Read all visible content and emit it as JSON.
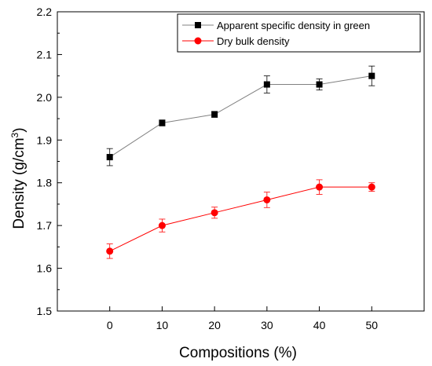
{
  "chart_data": {
    "type": "line",
    "xlabel": "Compositions (%)",
    "ylabel": {
      "main": "Density (g/cm",
      "superscript": "3",
      "close": ")"
    },
    "x": [
      0,
      10,
      20,
      30,
      40,
      50
    ],
    "x_ticks": [
      "0",
      "10",
      "20",
      "30",
      "40",
      "50"
    ],
    "xlim": [
      -10,
      60
    ],
    "ylim": [
      1.5,
      2.2
    ],
    "y_ticks": [
      "1.5",
      "1.6",
      "1.7",
      "1.8",
      "1.9",
      "2.0",
      "2.1",
      "2.2"
    ],
    "grid": false,
    "legend_position": "top-right",
    "series": [
      {
        "name": "Apparent specific density in green",
        "color": "#000000",
        "line_color": "#808080",
        "marker": "square",
        "values": [
          1.86,
          1.94,
          1.96,
          2.03,
          2.03,
          2.05
        ],
        "errors": [
          0.02,
          0.007,
          0.007,
          0.02,
          0.013,
          0.023
        ]
      },
      {
        "name": "Dry bulk density",
        "color": "#ff0000",
        "line_color": "#ff0000",
        "marker": "circle",
        "values": [
          1.64,
          1.7,
          1.73,
          1.76,
          1.79,
          1.79
        ],
        "errors": [
          0.017,
          0.015,
          0.013,
          0.018,
          0.017,
          0.01
        ]
      }
    ]
  }
}
